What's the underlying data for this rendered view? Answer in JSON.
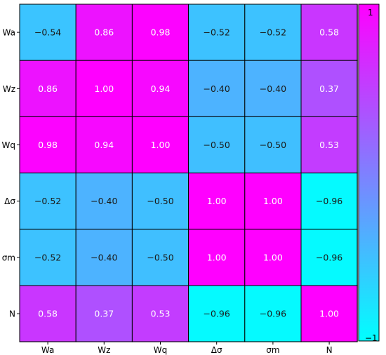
{
  "chart_data": {
    "type": "heatmap",
    "title": "",
    "xlabel": "",
    "ylabel": "",
    "row_labels": [
      "Wa",
      "Wz",
      "Wq",
      "Δσ",
      "σm",
      "N"
    ],
    "col_labels": [
      "Wa",
      "Wz",
      "Wq",
      "Δσ",
      "σm",
      "N"
    ],
    "values": [
      [
        -0.54,
        0.86,
        0.98,
        -0.52,
        -0.52,
        0.58
      ],
      [
        0.86,
        1.0,
        0.94,
        -0.4,
        -0.4,
        0.37
      ],
      [
        0.98,
        0.94,
        1.0,
        -0.5,
        -0.5,
        0.53
      ],
      [
        -0.52,
        -0.4,
        -0.5,
        1.0,
        1.0,
        -0.96
      ],
      [
        -0.52,
        -0.4,
        -0.5,
        1.0,
        1.0,
        -0.96
      ],
      [
        0.58,
        0.37,
        0.53,
        -0.96,
        -0.96,
        1.0
      ]
    ],
    "cell_text": [
      [
        "−0.54",
        "0.86",
        "0.98",
        "−0.52",
        "−0.52",
        "0.58"
      ],
      [
        "0.86",
        "1.00",
        "0.94",
        "−0.40",
        "−0.40",
        "0.37"
      ],
      [
        "0.98",
        "0.94",
        "1.00",
        "−0.50",
        "−0.50",
        "0.53"
      ],
      [
        "−0.52",
        "−0.40",
        "−0.50",
        "1.00",
        "1.00",
        "−0.96"
      ],
      [
        "−0.52",
        "−0.40",
        "−0.50",
        "1.00",
        "1.00",
        "−0.96"
      ],
      [
        "0.58",
        "0.37",
        "0.53",
        "−0.96",
        "−0.96",
        "1.00"
      ]
    ],
    "colorbar": {
      "min": -1,
      "max": 1,
      "min_label": "−1",
      "max_label": "1",
      "colormap": "cool",
      "color_low": "#00ffff",
      "color_high": "#ff00ff",
      "position": "right"
    },
    "grid": true,
    "grid_color": "#000000",
    "legend": "none"
  }
}
